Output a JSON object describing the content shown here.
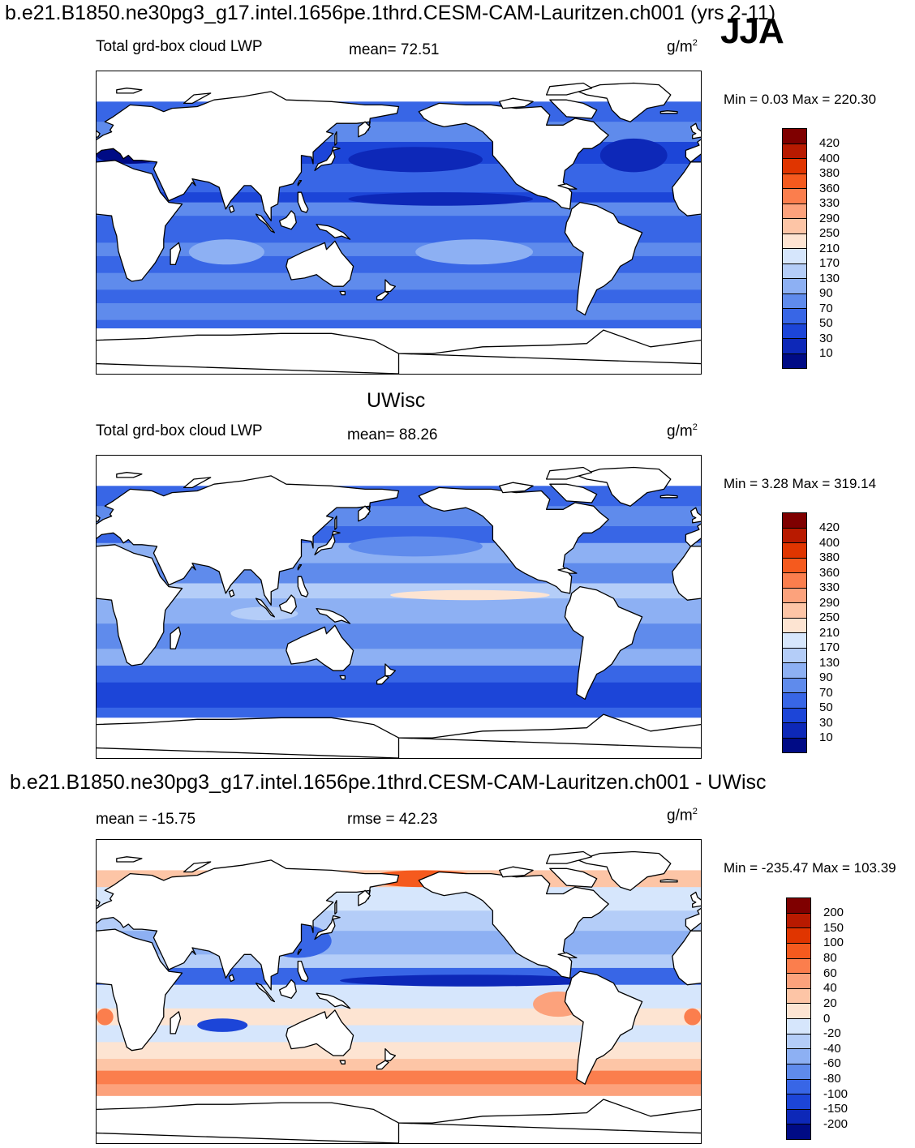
{
  "header": {
    "run_title": "b.e21.B1850.ne30pg3_g17.intel.1656pe.1thrd.CESM-CAM-Lauritzen.ch001 (yrs 2-11)",
    "season": "JJA"
  },
  "panels": [
    {
      "id": "model",
      "variable_label": "Total grd-box cloud LWP",
      "stat_label": "mean=  72.51",
      "units_base": "g/m",
      "units_exp": "2",
      "minmax": "Min =   0.03 Max = 220.30",
      "colorbar_labels": [
        "420",
        "400",
        "380",
        "360",
        "330",
        "290",
        "250",
        "210",
        "170",
        "130",
        "90",
        "70",
        "50",
        "30",
        "10"
      ],
      "colorbar_colors": [
        "#7f0000",
        "#b81a00",
        "#e03500",
        "#f55a1e",
        "#fb7e4d",
        "#fca27c",
        "#fdc5a6",
        "#fde4d2",
        "#d6e6fc",
        "#b4cdf8",
        "#8db0f3",
        "#5f8bec",
        "#3866e6",
        "#1c45d8",
        "#0d28b8",
        "#000b85"
      ],
      "color_levels": [
        10,
        30,
        50,
        70,
        90,
        130,
        170,
        210,
        250,
        290,
        330,
        360,
        380,
        400,
        420
      ]
    },
    {
      "id": "obs",
      "center_title": "UWisc",
      "variable_label": "Total grd-box cloud LWP",
      "stat_label": "mean=  88.26",
      "units_base": "g/m",
      "units_exp": "2",
      "minmax": "Min =   3.28 Max = 319.14",
      "colorbar_labels": [
        "420",
        "400",
        "380",
        "360",
        "330",
        "290",
        "250",
        "210",
        "170",
        "130",
        "90",
        "70",
        "50",
        "30",
        "10"
      ],
      "colorbar_colors": [
        "#7f0000",
        "#b81a00",
        "#e03500",
        "#f55a1e",
        "#fb7e4d",
        "#fca27c",
        "#fdc5a6",
        "#fde4d2",
        "#d6e6fc",
        "#b4cdf8",
        "#8db0f3",
        "#5f8bec",
        "#3866e6",
        "#1c45d8",
        "#0d28b8",
        "#000b85"
      ],
      "color_levels": [
        10,
        30,
        50,
        70,
        90,
        130,
        170,
        210,
        250,
        290,
        330,
        360,
        380,
        400,
        420
      ]
    },
    {
      "id": "diff",
      "center_title": "b.e21.B1850.ne30pg3_g17.intel.1656pe.1thrd.CESM-CAM-Lauritzen.ch001 - UWisc",
      "variable_label": "mean = -15.75",
      "stat_label": "rmse =  42.23",
      "units_base": "g/m",
      "units_exp": "2",
      "minmax": "Min = -235.47 Max = 103.39",
      "colorbar_labels": [
        "200",
        "150",
        "100",
        "80",
        "60",
        "40",
        "20",
        "0",
        "-20",
        "-40",
        "-60",
        "-80",
        "-100",
        "-150",
        "-200"
      ],
      "colorbar_colors": [
        "#7f0000",
        "#b81a00",
        "#e03500",
        "#f55a1e",
        "#fb7e4d",
        "#fca27c",
        "#fdc5a6",
        "#fde4d2",
        "#d6e6fc",
        "#b4cdf8",
        "#8db0f3",
        "#5f8bec",
        "#3866e6",
        "#1c45d8",
        "#0d28b8",
        "#000b85"
      ],
      "color_levels": [
        -200,
        -150,
        -100,
        -80,
        -60,
        -40,
        -20,
        0,
        20,
        40,
        60,
        80,
        100,
        150,
        200
      ]
    }
  ]
}
